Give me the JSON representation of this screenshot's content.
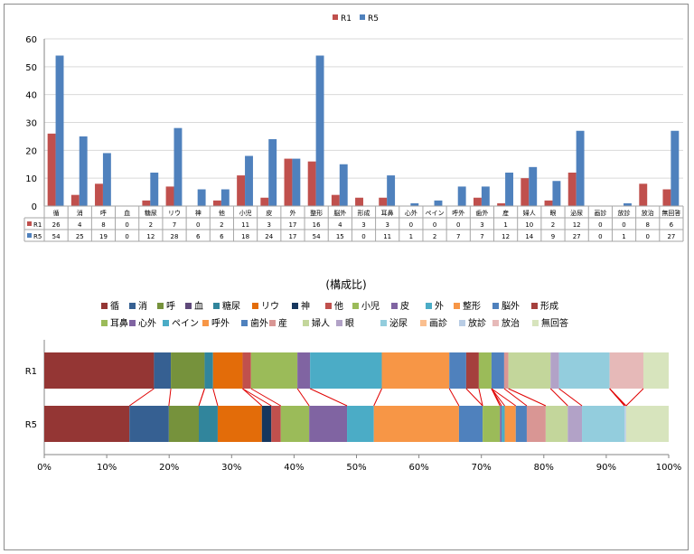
{
  "chart_data": [
    {
      "type": "bar",
      "categories": [
        "循",
        "消",
        "呼",
        "血",
        "糖尿",
        "リウ",
        "神",
        "他",
        "小児",
        "皮",
        "外",
        "整形",
        "脳外",
        "形成",
        "耳鼻",
        "心外",
        "ペイン",
        "呼外",
        "歯外",
        "産",
        "婦人",
        "眼",
        "泌尿",
        "画診",
        "放診",
        "放治",
        "無回答"
      ],
      "series": [
        {
          "name": "R1",
          "color": "#c0504d",
          "values": [
            26,
            4,
            8,
            0,
            2,
            7,
            0,
            2,
            11,
            3,
            17,
            16,
            4,
            3,
            3,
            0,
            0,
            0,
            3,
            1,
            10,
            2,
            12,
            0,
            0,
            8,
            6
          ]
        },
        {
          "name": "R5",
          "color": "#4f81bd",
          "values": [
            54,
            25,
            19,
            0,
            12,
            28,
            6,
            6,
            18,
            24,
            17,
            54,
            15,
            0,
            11,
            1,
            2,
            7,
            7,
            12,
            14,
            9,
            27,
            0,
            1,
            0,
            27
          ]
        }
      ],
      "ylim": [
        0,
        60
      ],
      "yticks": [
        "0",
        "10",
        "20",
        "30",
        "40",
        "50",
        "60"
      ],
      "legend": "top",
      "grid": true,
      "data_table": true
    },
    {
      "type": "bar",
      "stacked_percent": true,
      "orientation": "horizontal",
      "title": "(構成比)",
      "rows": [
        "R1",
        "R5"
      ],
      "categories": [
        "循",
        "消",
        "呼",
        "血",
        "糖尿",
        "リウ",
        "神",
        "他",
        "小児",
        "皮",
        "外",
        "整形",
        "脳外",
        "形成",
        "耳鼻",
        "心外",
        "ペイン",
        "呼外",
        "歯外",
        "産",
        "婦人",
        "眼",
        "泌尿",
        "画診",
        "放診",
        "放治",
        "無回答"
      ],
      "colors": [
        "#943634",
        "#366092",
        "#76923c",
        "#5f497a",
        "#31859c",
        "#e36c09",
        "#17375e",
        "#c0504d",
        "#9bbb59",
        "#8064a2",
        "#4bacc6",
        "#f79646",
        "#4f81bd",
        "#a5403d",
        "#9bbb59",
        "#8064a2",
        "#4bacc6",
        "#f79646",
        "#4f81bd",
        "#d99694",
        "#c3d69b",
        "#b2a2c7",
        "#93cddd",
        "#fabf8f",
        "#b9cde5",
        "#e6b9b8",
        "#d7e4bd"
      ],
      "series": [
        {
          "name": "R1",
          "values": [
            26,
            4,
            8,
            0,
            2,
            7,
            0,
            2,
            11,
            3,
            17,
            16,
            4,
            3,
            3,
            0,
            0,
            0,
            3,
            1,
            10,
            2,
            12,
            0,
            0,
            8,
            6
          ]
        },
        {
          "name": "R5",
          "values": [
            54,
            25,
            19,
            0,
            12,
            28,
            6,
            6,
            18,
            24,
            17,
            54,
            15,
            0,
            11,
            1,
            2,
            7,
            7,
            12,
            14,
            9,
            27,
            0,
            1,
            0,
            27
          ]
        }
      ],
      "xticks": [
        "0%",
        "10%",
        "20%",
        "30%",
        "40%",
        "50%",
        "60%",
        "70%",
        "80%",
        "90%",
        "100%"
      ],
      "legend": "top",
      "series_lines": true
    }
  ]
}
